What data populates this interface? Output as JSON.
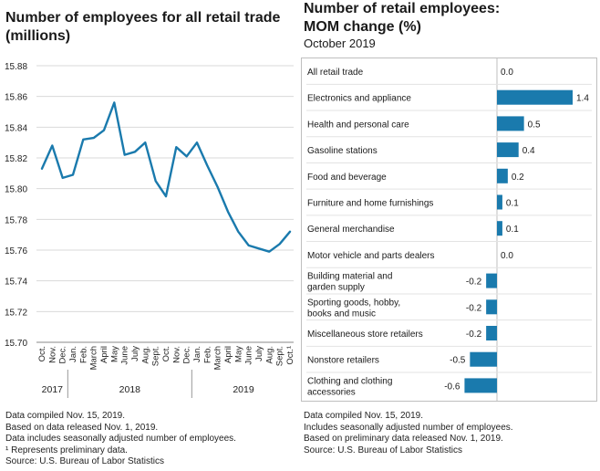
{
  "left_chart": {
    "title": [
      "Number of employees for all retail trade",
      "(millions)"
    ],
    "type": "line",
    "ylim": [
      15.7,
      15.88
    ],
    "yticks": [
      "15.88",
      "15.86",
      "15.84",
      "15.82",
      "15.80",
      "15.78",
      "15.76",
      "15.74",
      "15.72",
      "15.70"
    ],
    "months": [
      "Oct.",
      "Nov.",
      "Dec.",
      "Jan.",
      "Feb.",
      "March",
      "April",
      "May",
      "June",
      "July",
      "Aug.",
      "Sept.",
      "Oct.",
      "Nov.",
      "Dec.",
      "Jan.",
      "Feb.",
      "March",
      "April",
      "May",
      "June",
      "July",
      "Aug.",
      "Sept.",
      "Oct.¹"
    ],
    "years": [
      {
        "label": "2017",
        "start": 0,
        "end": 2
      },
      {
        "label": "2018",
        "start": 3,
        "end": 14
      },
      {
        "label": "2019",
        "start": 15,
        "end": 24
      }
    ],
    "values": [
      15.813,
      15.828,
      15.807,
      15.809,
      15.832,
      15.833,
      15.838,
      15.856,
      15.822,
      15.824,
      15.83,
      15.805,
      15.795,
      15.827,
      15.821,
      15.83,
      15.815,
      15.801,
      15.785,
      15.772,
      15.763,
      15.761,
      15.759,
      15.764,
      15.772
    ],
    "color": "#1a7aad",
    "notes": [
      "Data compiled Nov. 15, 2019.",
      "Based on data released Nov. 1, 2019.",
      "Data includes seasonally adjusted number of employees.",
      "¹ Represents preliminary data.",
      "Source: U.S. Bureau of Labor Statistics"
    ]
  },
  "right_chart": {
    "title": [
      "Number of retail employees:",
      "MOM change (%)"
    ],
    "subtitle": "October 2019",
    "type": "bar",
    "categories": [
      [
        "All retail trade"
      ],
      [
        "Electronics and appliance"
      ],
      [
        "Health and personal care"
      ],
      [
        "Gasoline stations"
      ],
      [
        "Food and beverage"
      ],
      [
        "Furniture and home furnishings"
      ],
      [
        "General merchandise"
      ],
      [
        "Motor vehicle and parts dealers"
      ],
      [
        "Building material and",
        "garden supply"
      ],
      [
        "Sporting goods, hobby,",
        "books and music"
      ],
      [
        "Miscellaneous store retailers"
      ],
      [
        "Nonstore retailers"
      ],
      [
        "Clothing and clothing",
        "accessories"
      ]
    ],
    "values": [
      0.0,
      1.4,
      0.5,
      0.4,
      0.2,
      0.1,
      0.1,
      0.0,
      -0.2,
      -0.2,
      -0.2,
      -0.5,
      -0.6
    ],
    "labels": [
      "0.0",
      "1.4",
      "0.5",
      "0.4",
      "0.2",
      "0.1",
      "0.1",
      "0.0",
      "-0.2",
      "-0.2",
      "-0.2",
      "-0.5",
      "-0.6"
    ],
    "color": "#1a7aad",
    "notes": [
      "Data compiled Nov. 15, 2019.",
      "Includes seasonally adjusted number of employees.",
      "Based on preliminary data released Nov. 1, 2019.",
      "Source: U.S. Bureau of Labor Statistics"
    ]
  }
}
